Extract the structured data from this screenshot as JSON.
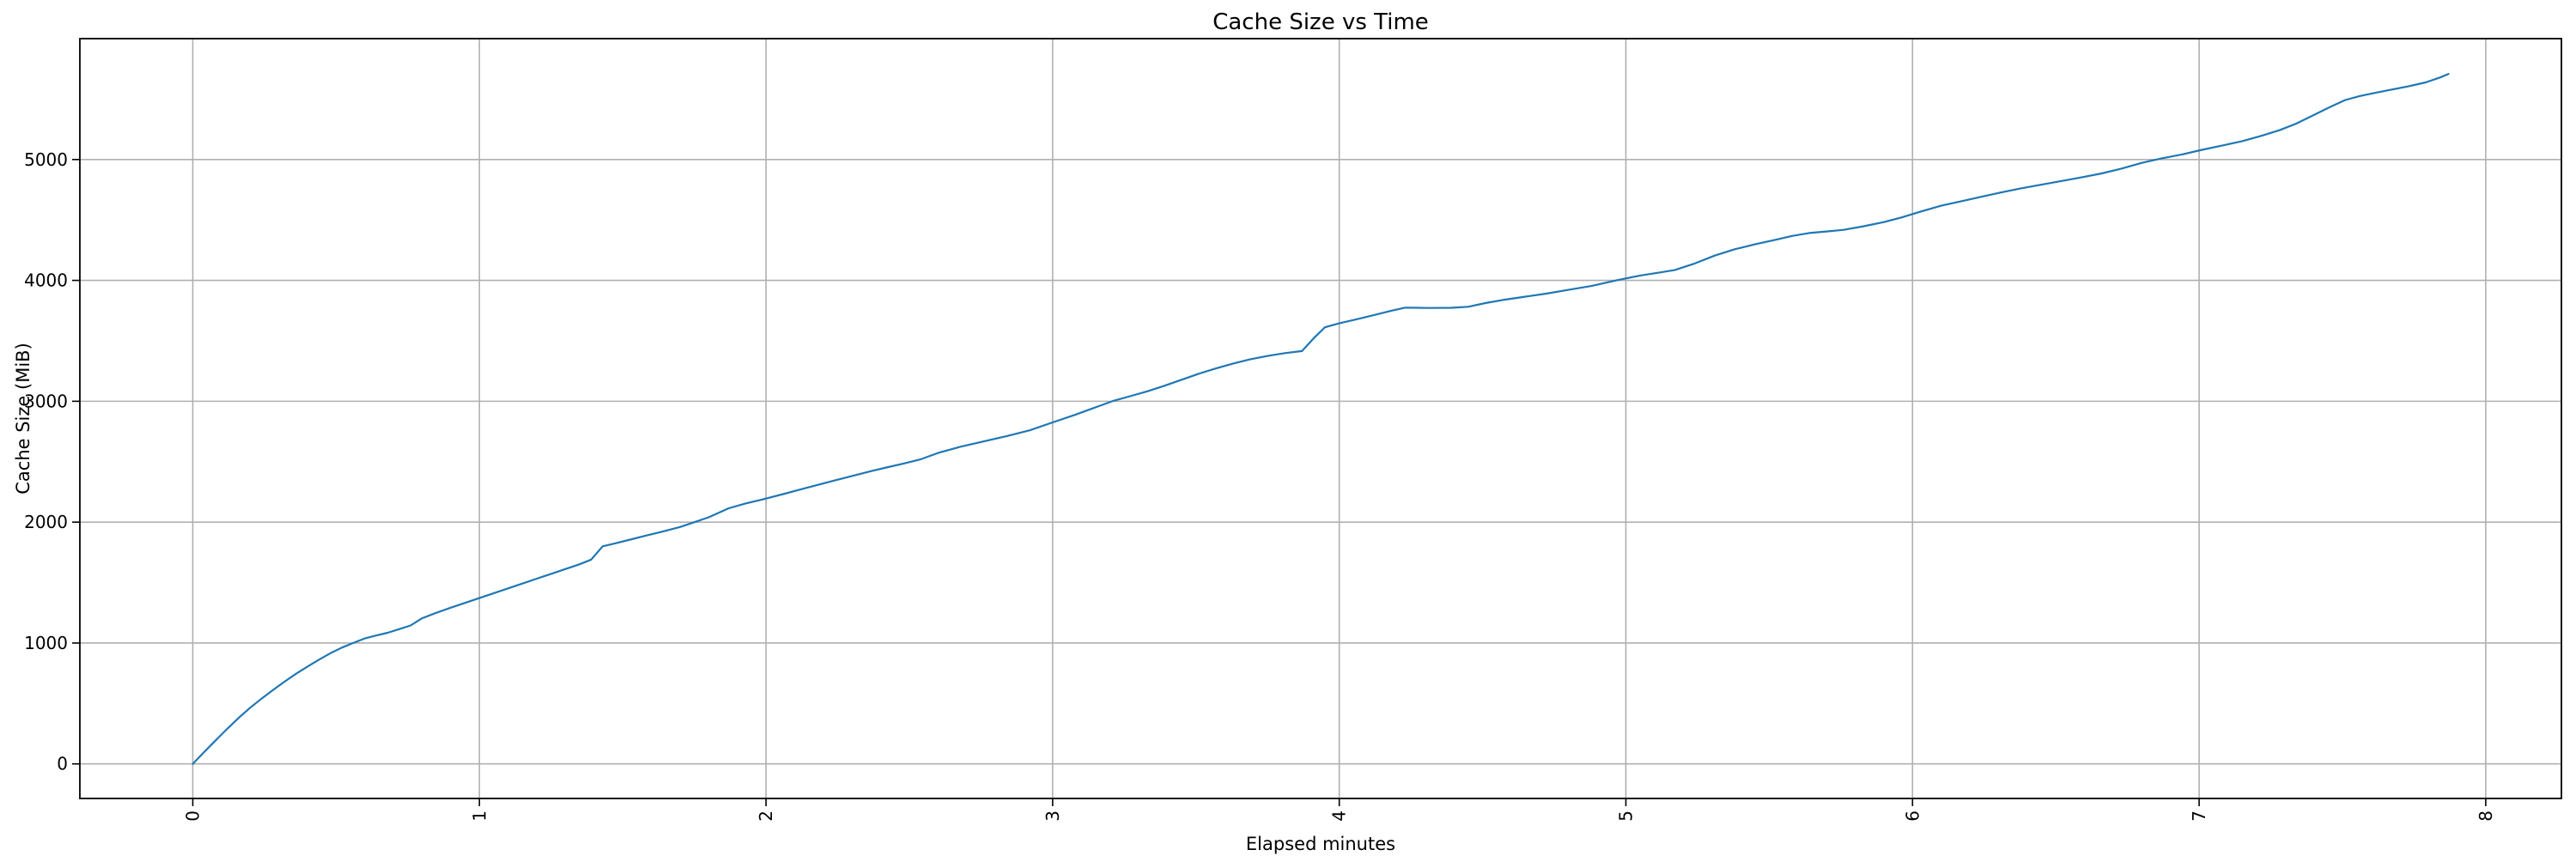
{
  "figure": {
    "background": "#ffffff"
  },
  "chart_data": {
    "type": "line",
    "title": "Cache Size vs Time",
    "xlabel": "Elapsed minutes",
    "ylabel": "Cache Size (MiB)",
    "x_ticks": [
      0,
      1,
      2,
      3,
      4,
      5,
      6,
      7,
      8
    ],
    "y_ticks": [
      0,
      1000,
      2000,
      3000,
      4000,
      5000
    ],
    "xlim": [
      -0.394,
      8.264
    ],
    "ylim": [
      -286,
      6000
    ],
    "grid": true,
    "legend_position": "none",
    "x_tick_rotation_deg": 90,
    "colors": {
      "line": "#1f77b4",
      "grid": "#b0b0b0",
      "spine": "#000000",
      "text": "#000000",
      "background": "#ffffff"
    },
    "series": [
      {
        "name": "Cache Size",
        "x": [
          0.0,
          0.04,
          0.08,
          0.12,
          0.16,
          0.2,
          0.24,
          0.28,
          0.32,
          0.36,
          0.4,
          0.44,
          0.48,
          0.52,
          0.56,
          0.6,
          0.64,
          0.68,
          0.72,
          0.76,
          0.8,
          0.85,
          0.9,
          0.95,
          1.0,
          1.05,
          1.1,
          1.15,
          1.2,
          1.25,
          1.3,
          1.35,
          1.39,
          1.43,
          1.47,
          1.52,
          1.58,
          1.64,
          1.7,
          1.75,
          1.8,
          1.87,
          1.93,
          2.0,
          2.06,
          2.12,
          2.18,
          2.24,
          2.3,
          2.36,
          2.42,
          2.48,
          2.54,
          2.6,
          2.68,
          2.76,
          2.84,
          2.92,
          3.0,
          3.08,
          3.15,
          3.21,
          3.27,
          3.33,
          3.39,
          3.45,
          3.51,
          3.57,
          3.63,
          3.69,
          3.75,
          3.81,
          3.87,
          3.91,
          3.95,
          4.0,
          4.06,
          4.12,
          4.18,
          4.23,
          4.31,
          4.39,
          4.45,
          4.51,
          4.57,
          4.64,
          4.72,
          4.8,
          4.88,
          4.97,
          5.05,
          5.11,
          5.17,
          5.24,
          5.31,
          5.38,
          5.45,
          5.52,
          5.58,
          5.64,
          5.7,
          5.76,
          5.83,
          5.9,
          5.96,
          6.03,
          6.1,
          6.17,
          6.24,
          6.31,
          6.38,
          6.45,
          6.52,
          6.59,
          6.66,
          6.73,
          6.8,
          6.87,
          6.94,
          7.01,
          7.08,
          7.15,
          7.22,
          7.28,
          7.34,
          7.4,
          7.46,
          7.51,
          7.56,
          7.61,
          7.67,
          7.73,
          7.79,
          7.84,
          7.87
        ],
        "y": [
          0,
          100,
          195,
          290,
          380,
          465,
          540,
          612,
          680,
          745,
          805,
          862,
          915,
          962,
          1000,
          1038,
          1062,
          1085,
          1115,
          1145,
          1205,
          1250,
          1292,
          1332,
          1372,
          1412,
          1452,
          1492,
          1532,
          1572,
          1612,
          1652,
          1690,
          1800,
          1822,
          1852,
          1888,
          1922,
          1960,
          2000,
          2040,
          2115,
          2155,
          2195,
          2232,
          2270,
          2308,
          2345,
          2382,
          2418,
          2452,
          2485,
          2520,
          2572,
          2625,
          2668,
          2712,
          2760,
          2825,
          2890,
          2950,
          3002,
          3042,
          3082,
          3128,
          3178,
          3228,
          3272,
          3312,
          3348,
          3375,
          3398,
          3415,
          3520,
          3612,
          3645,
          3678,
          3712,
          3748,
          3775,
          3772,
          3773,
          3782,
          3812,
          3838,
          3862,
          3890,
          3922,
          3954,
          4002,
          4040,
          4062,
          4085,
          4140,
          4205,
          4258,
          4298,
          4335,
          4368,
          4392,
          4405,
          4418,
          4448,
          4482,
          4520,
          4570,
          4618,
          4655,
          4692,
          4728,
          4762,
          4792,
          4822,
          4852,
          4885,
          4925,
          4972,
          5010,
          5042,
          5080,
          5115,
          5152,
          5198,
          5242,
          5298,
          5368,
          5438,
          5492,
          5525,
          5550,
          5578,
          5605,
          5638,
          5678,
          5708
        ]
      }
    ]
  }
}
